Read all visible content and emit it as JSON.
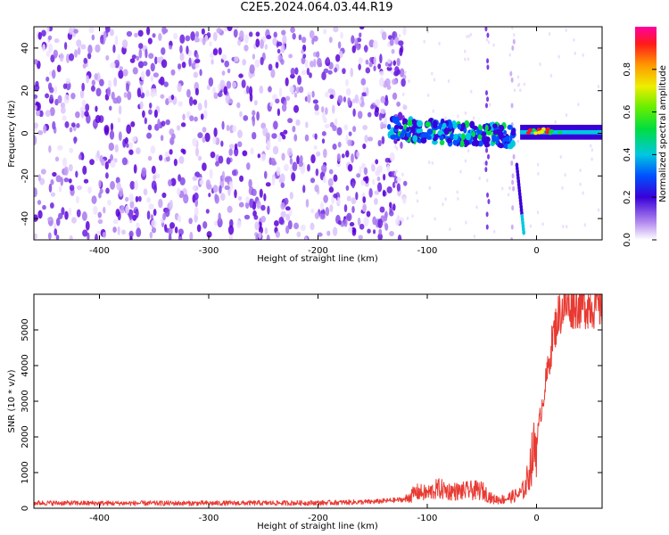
{
  "title": "C2E5.2024.064.03.44.R19",
  "chart_data": [
    {
      "type": "heatmap",
      "xlabel": "Height of straight line (km)",
      "ylabel": "Frequency (Hz)",
      "xlim": [
        -460,
        60
      ],
      "ylim": [
        -50,
        50
      ],
      "xticks": [
        -400,
        -300,
        -200,
        -100,
        0
      ],
      "yticks": [
        -40,
        -20,
        0,
        20,
        40
      ],
      "colorbar": {
        "label": "Normalized spectral amplitude",
        "range": [
          0.0,
          1.0
        ],
        "ticks": [
          "0.0",
          "0.2",
          "0.4",
          "0.6",
          "0.8"
        ],
        "colormap": "rainbow"
      }
    },
    {
      "type": "line",
      "xlabel": "Height of straight line (km)",
      "ylabel": "SNR (10 * v/v)",
      "xlim": [
        -460,
        60
      ],
      "ylim": [
        0,
        6000
      ],
      "xticks": [
        -400,
        -300,
        -200,
        -100,
        0
      ],
      "yticks": [
        0,
        1000,
        2000,
        3000,
        4000,
        5000
      ],
      "series": [
        {
          "color": "#e83a32",
          "x": [
            -460,
            -400,
            -300,
            -200,
            -150,
            -120,
            -110,
            -100,
            -90,
            -80,
            -70,
            -60,
            -50,
            -40,
            -30,
            -20,
            -15,
            -10,
            -5,
            0,
            5,
            10,
            15,
            20,
            25,
            30,
            40,
            50,
            60
          ],
          "y": [
            150,
            140,
            140,
            150,
            180,
            250,
            450,
            420,
            550,
            480,
            470,
            500,
            500,
            250,
            250,
            350,
            400,
            600,
            1300,
            1900,
            2900,
            3800,
            4800,
            5400,
            5650,
            5700,
            5700,
            5700,
            5650
          ]
        }
      ]
    }
  ]
}
